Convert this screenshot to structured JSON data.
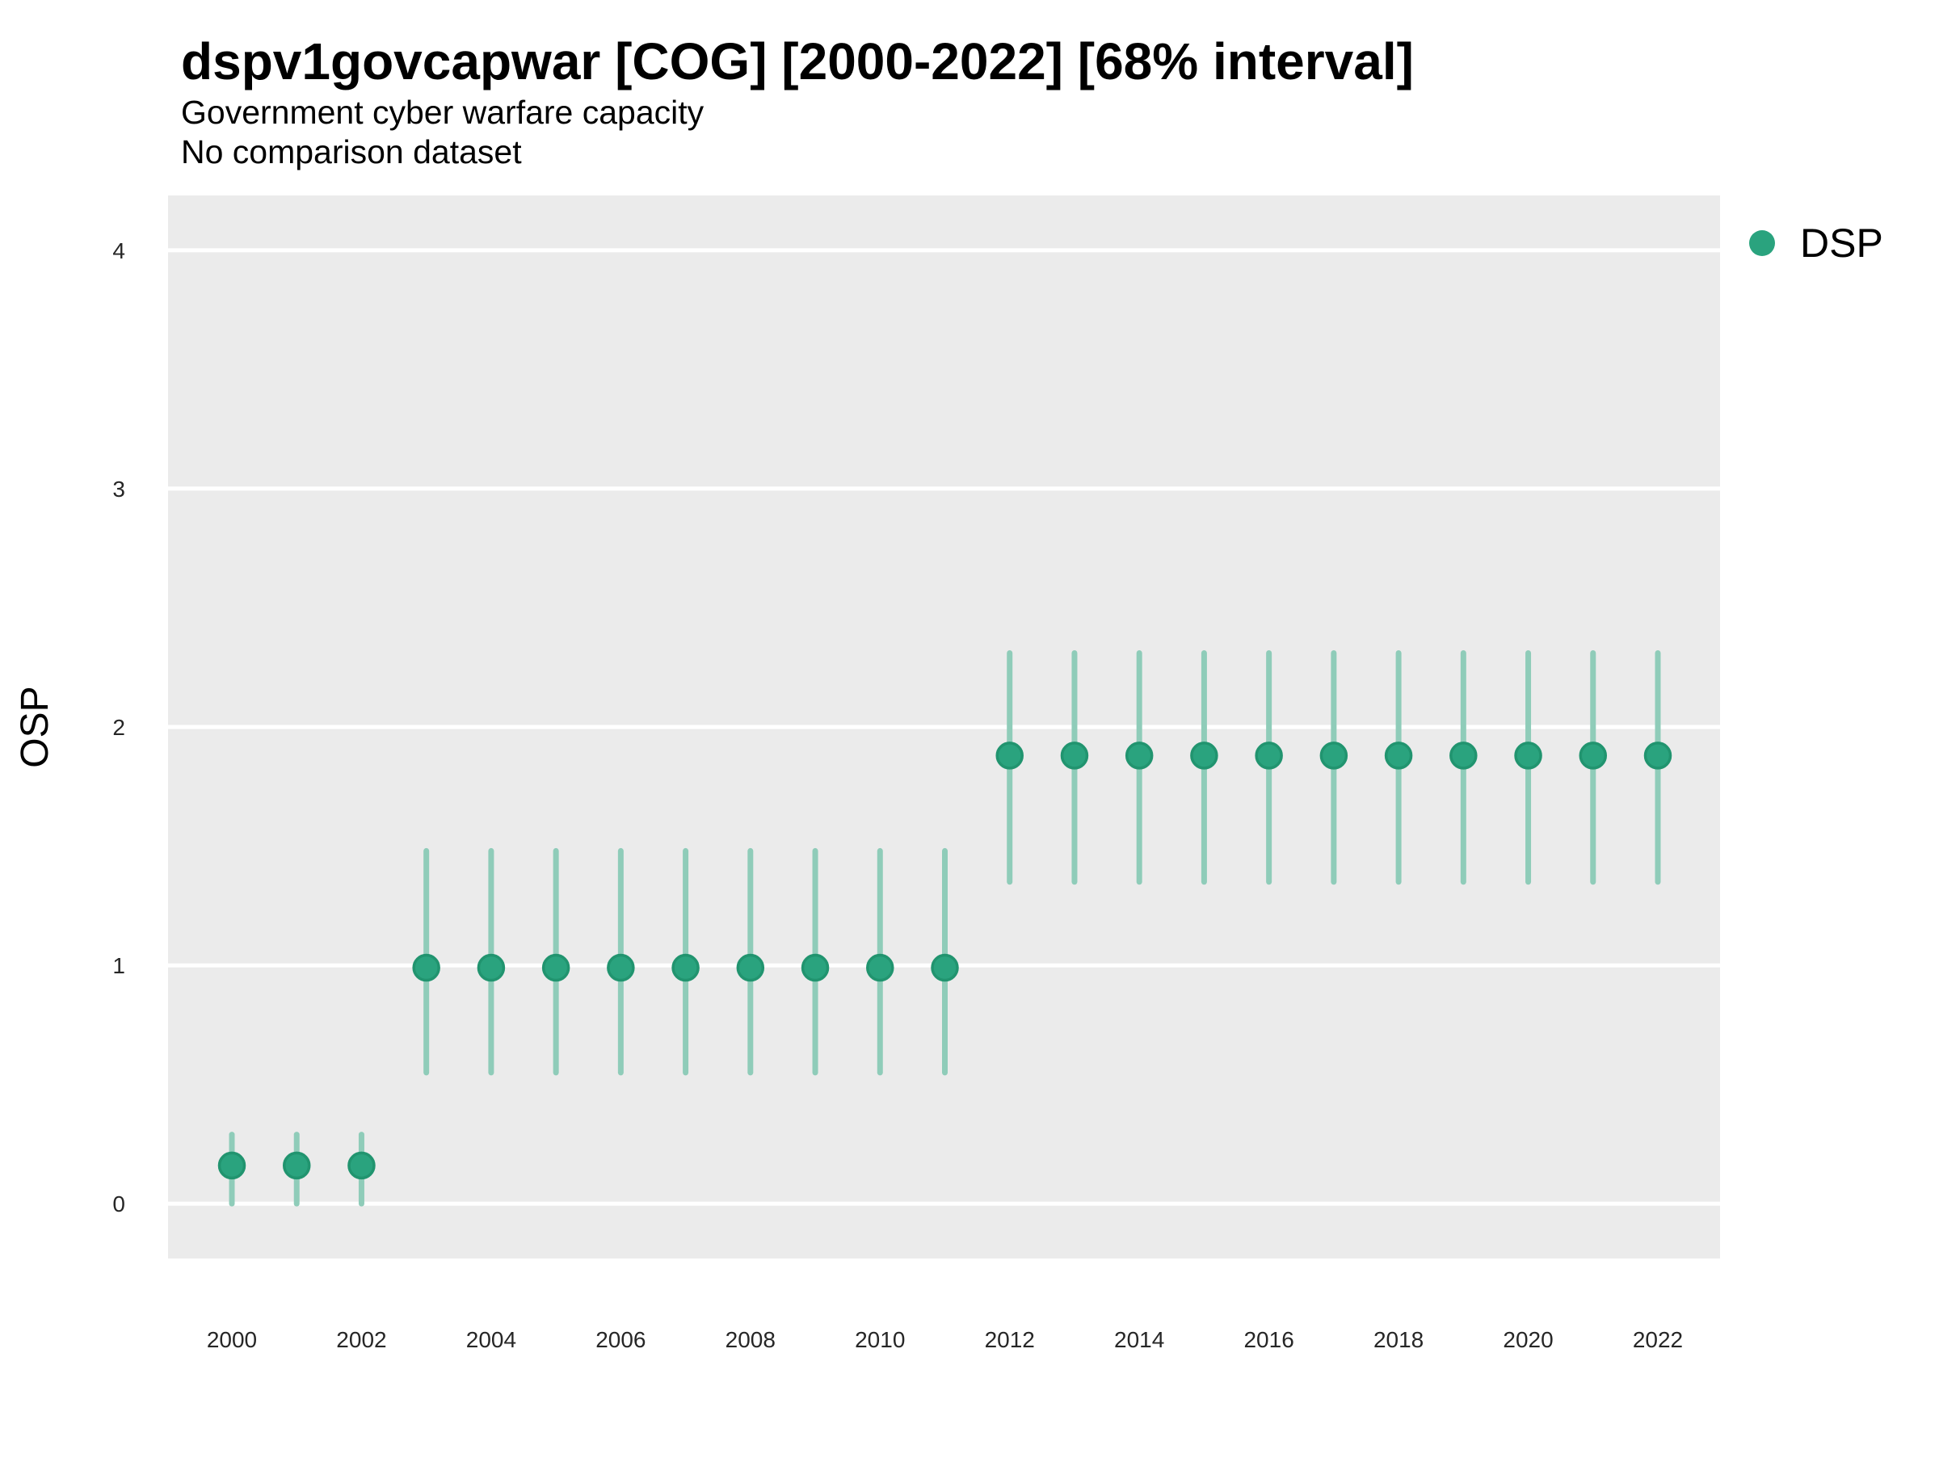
{
  "chart_data": {
    "type": "scatter",
    "title": "dspv1govcapwar [COG] [2000-2022] [68% interval]",
    "subtitle": "Government cyber warfare capacity",
    "note": "No comparison dataset",
    "xlabel": "",
    "ylabel": "OSP",
    "interval_level": "68%",
    "legend": [
      {
        "label": "DSP",
        "color": "#2aa37e"
      }
    ],
    "legend_position": "right",
    "grid": "horizontal-major-white",
    "panel_bg": "#ebebeb",
    "gridline_color": "#ffffff",
    "colors": {
      "point": "#2aa37e",
      "point_stroke": "#21946f",
      "interval": "#8fccb9"
    },
    "x": [
      2000,
      2001,
      2002,
      2003,
      2004,
      2005,
      2006,
      2007,
      2008,
      2009,
      2010,
      2011,
      2012,
      2013,
      2014,
      2015,
      2016,
      2017,
      2018,
      2019,
      2020,
      2021,
      2022
    ],
    "xticks": [
      2000,
      2002,
      2004,
      2006,
      2008,
      2010,
      2012,
      2014,
      2016,
      2018,
      2020,
      2022
    ],
    "yticks": [
      0,
      1,
      2,
      3,
      4
    ],
    "ylim": [
      -0.23,
      4.23
    ],
    "series": [
      {
        "name": "DSP",
        "points": [
          {
            "year": 2000,
            "est": 0.16,
            "lo": 0.0,
            "hi": 0.29
          },
          {
            "year": 2001,
            "est": 0.16,
            "lo": 0.0,
            "hi": 0.29
          },
          {
            "year": 2002,
            "est": 0.16,
            "lo": 0.0,
            "hi": 0.29
          },
          {
            "year": 2003,
            "est": 0.99,
            "lo": 0.55,
            "hi": 1.48
          },
          {
            "year": 2004,
            "est": 0.99,
            "lo": 0.55,
            "hi": 1.48
          },
          {
            "year": 2005,
            "est": 0.99,
            "lo": 0.55,
            "hi": 1.48
          },
          {
            "year": 2006,
            "est": 0.99,
            "lo": 0.55,
            "hi": 1.48
          },
          {
            "year": 2007,
            "est": 0.99,
            "lo": 0.55,
            "hi": 1.48
          },
          {
            "year": 2008,
            "est": 0.99,
            "lo": 0.55,
            "hi": 1.48
          },
          {
            "year": 2009,
            "est": 0.99,
            "lo": 0.55,
            "hi": 1.48
          },
          {
            "year": 2010,
            "est": 0.99,
            "lo": 0.55,
            "hi": 1.48
          },
          {
            "year": 2011,
            "est": 0.99,
            "lo": 0.55,
            "hi": 1.48
          },
          {
            "year": 2012,
            "est": 1.88,
            "lo": 1.35,
            "hi": 2.31
          },
          {
            "year": 2013,
            "est": 1.88,
            "lo": 1.35,
            "hi": 2.31
          },
          {
            "year": 2014,
            "est": 1.88,
            "lo": 1.35,
            "hi": 2.31
          },
          {
            "year": 2015,
            "est": 1.88,
            "lo": 1.35,
            "hi": 2.31
          },
          {
            "year": 2016,
            "est": 1.88,
            "lo": 1.35,
            "hi": 2.31
          },
          {
            "year": 2017,
            "est": 1.88,
            "lo": 1.35,
            "hi": 2.31
          },
          {
            "year": 2018,
            "est": 1.88,
            "lo": 1.35,
            "hi": 2.31
          },
          {
            "year": 2019,
            "est": 1.88,
            "lo": 1.35,
            "hi": 2.31
          },
          {
            "year": 2020,
            "est": 1.88,
            "lo": 1.35,
            "hi": 2.31
          },
          {
            "year": 2021,
            "est": 1.88,
            "lo": 1.35,
            "hi": 2.31
          },
          {
            "year": 2022,
            "est": 1.88,
            "lo": 1.35,
            "hi": 2.31
          }
        ]
      }
    ]
  }
}
